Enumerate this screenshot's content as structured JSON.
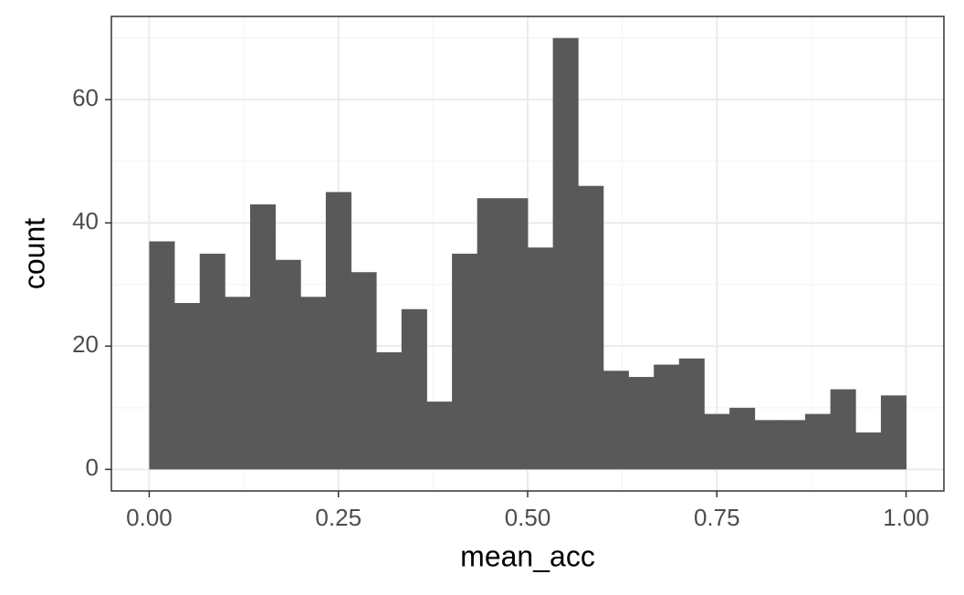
{
  "chart_data": {
    "type": "histogram",
    "x_label": "mean_acc",
    "y_label": "count",
    "bins": [
      0,
      0.0333,
      0.0667,
      0.1,
      0.1333,
      0.1667,
      0.2,
      0.2333,
      0.2667,
      0.3,
      0.3333,
      0.3667,
      0.4,
      0.4333,
      0.4667,
      0.5,
      0.5333,
      0.5667,
      0.6,
      0.6333,
      0.6667,
      0.7,
      0.7333,
      0.7667,
      0.8,
      0.8333,
      0.8667,
      0.9,
      0.9333,
      0.9667,
      1
    ],
    "values": [
      37,
      27,
      35,
      28,
      43,
      34,
      28,
      45,
      32,
      19,
      26,
      11,
      35,
      44,
      44,
      36,
      70,
      46,
      16,
      15,
      17,
      18,
      9,
      10,
      8,
      8,
      9,
      13,
      6,
      12
    ],
    "color": "#595959",
    "xlim": [
      -0.05,
      1.05
    ],
    "xticks": [
      {
        "value": 0,
        "label": "0.00"
      },
      {
        "value": 0.25,
        "label": "0.25"
      },
      {
        "value": 0.5,
        "label": "0.50"
      },
      {
        "value": 0.75,
        "label": "0.75"
      },
      {
        "value": 1,
        "label": "1.00"
      }
    ],
    "xminorticks": [
      0.125,
      0.375,
      0.625,
      0.875
    ],
    "ylim": [
      -3.5,
      73.5
    ],
    "yticks": [
      0,
      20,
      40,
      60
    ],
    "yminorticks": [
      10,
      30,
      50,
      70
    ],
    "grid": true
  }
}
